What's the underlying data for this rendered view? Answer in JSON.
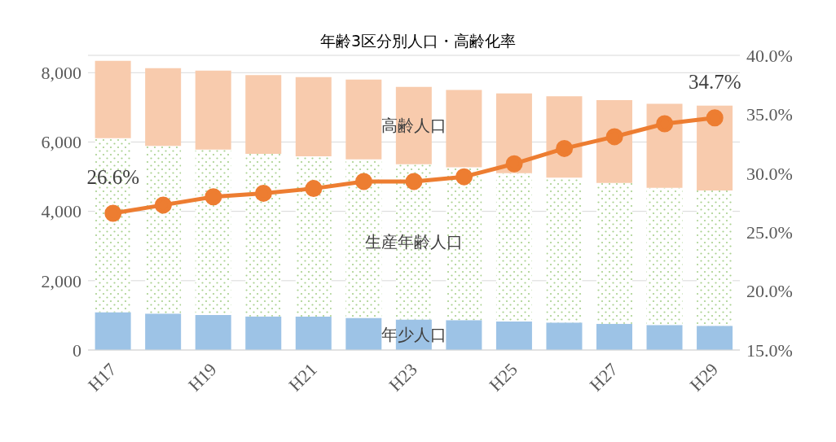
{
  "chart_data": {
    "type": "bar",
    "title": "年齢3区分別人口・高齢化率",
    "stacked": true,
    "grid": "y",
    "legend": false,
    "categories": [
      "H17",
      null,
      "H19",
      null,
      "H21",
      null,
      "H23",
      null,
      "H25",
      null,
      "H27",
      null,
      "H29"
    ],
    "series": [
      {
        "name": "年少人口",
        "color": "#9dc3e6",
        "values": [
          1090,
          1050,
          1010,
          970,
          960,
          930,
          880,
          860,
          820,
          790,
          760,
          720,
          700
        ]
      },
      {
        "name": "生産年齢人口",
        "color": "#a9d18e",
        "values": [
          5020,
          4840,
          4770,
          4690,
          4630,
          4570,
          4480,
          4410,
          4280,
          4180,
          4060,
          3960,
          3900
        ]
      },
      {
        "name": "高齢人口",
        "color": "#f8cbad",
        "values": [
          2230,
          2240,
          2280,
          2270,
          2280,
          2300,
          2230,
          2230,
          2300,
          2350,
          2390,
          2420,
          2450
        ]
      },
      {
        "type": "line",
        "axis": "y2",
        "color": "#ed7d31",
        "marker": "circle",
        "values": [
          26.6,
          27.3,
          28.0,
          28.3,
          28.7,
          29.3,
          29.3,
          29.7,
          30.8,
          32.1,
          33.1,
          34.2,
          34.7
        ],
        "value_labels": [
          "26.6%",
          null,
          null,
          null,
          null,
          null,
          null,
          null,
          null,
          null,
          null,
          null,
          "34.7%"
        ]
      }
    ],
    "ylim": [
      0,
      8500
    ],
    "yticks": [
      0,
      {
        "value": 2000,
        "label": "2,000"
      },
      {
        "value": 4000,
        "label": "4,000"
      },
      {
        "value": 6000,
        "label": "6,000"
      },
      {
        "value": 8000,
        "label": "8,000"
      }
    ],
    "y2lim": [
      15,
      40
    ],
    "y2ticks": [
      {
        "value": 15,
        "label": "15.0%"
      },
      {
        "value": 20,
        "label": "20.0%"
      },
      {
        "value": 25,
        "label": "25.0%"
      },
      {
        "value": 30,
        "label": "30.0%"
      },
      {
        "value": 35,
        "label": "35.0%"
      },
      {
        "value": 40,
        "label": "40.0%"
      }
    ]
  }
}
